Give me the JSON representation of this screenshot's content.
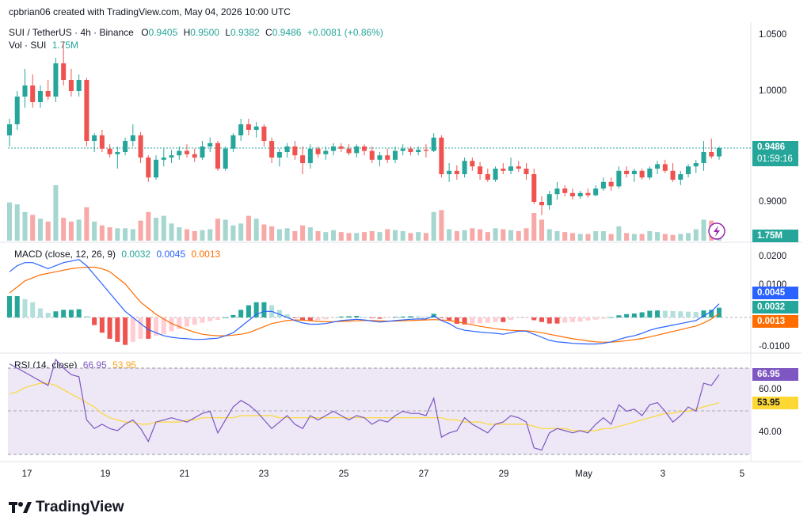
{
  "header": {
    "author_line": "cpbrian06 created with TradingView.com, May 04, 2026 10:00 UTC",
    "symbol": "SUI / TetherUS · 4h · Binance",
    "o_label": "O",
    "o": "0.9405",
    "h_label": "H",
    "h": "0.9500",
    "l_label": "L",
    "l": "0.9382",
    "c_label": "C",
    "c": "0.9486",
    "change": "+0.0081 (+0.86%)",
    "vol_label": "Vol · SUI",
    "vol_value": "1.75M"
  },
  "price_axis": {
    "labels": [
      "1.0500",
      "1.0000",
      "0.9000"
    ],
    "last_price": "0.9486",
    "countdown": "01:59:16",
    "vol_tag": "1.75M"
  },
  "macd": {
    "title": "MACD (close, 12, 26, 9)",
    "hist": "0.0032",
    "macd": "0.0045",
    "signal": "0.0013",
    "axis_labels": [
      "0.0200",
      "0.0100",
      "-0.0100"
    ],
    "tags": [
      "0.0045",
      "0.0032",
      "0.0013"
    ]
  },
  "rsi": {
    "title": "RSI (14, close)",
    "value": "66.95",
    "ma": "53.95",
    "axis_labels": [
      "60.00",
      "40.00"
    ],
    "tags": [
      "66.95",
      "53.95"
    ]
  },
  "x_axis": [
    "17",
    "19",
    "21",
    "23",
    "25",
    "27",
    "29",
    "May",
    "3",
    "5"
  ],
  "footer": {
    "brand": "TradingView",
    "logo_text": "TV"
  },
  "colors": {
    "up": "#26a69a",
    "down": "#ef5350",
    "macd_line": "#2962ff",
    "signal_line": "#ff6d00",
    "rsi_line": "#7e57c2",
    "rsi_ma": "#fdd835",
    "rsi_band": "#ede7f6"
  },
  "chart_data": {
    "type": "candlestick",
    "interval": "4h",
    "ylim": [
      0.88,
      1.07
    ],
    "candles": [
      [
        0.96,
        0.975,
        0.95,
        0.97
      ],
      [
        0.97,
        1.0,
        0.965,
        0.995
      ],
      [
        0.995,
        1.02,
        0.985,
        1.005
      ],
      [
        1.005,
        1.015,
        0.985,
        0.99
      ],
      [
        0.99,
        1.005,
        0.985,
        1.0
      ],
      [
        1.0,
        1.01,
        0.992,
        0.995
      ],
      [
        0.995,
        1.03,
        0.99,
        1.025
      ],
      [
        1.025,
        1.045,
        1.005,
        1.01
      ],
      [
        1.01,
        1.02,
        0.995,
        1.0
      ],
      [
        1.0,
        1.015,
        0.995,
        1.01
      ],
      [
        1.01,
        1.012,
        0.95,
        0.955
      ],
      [
        0.955,
        0.962,
        0.945,
        0.96
      ],
      [
        0.96,
        0.965,
        0.945,
        0.948
      ],
      [
        0.948,
        0.952,
        0.94,
        0.943
      ],
      [
        0.943,
        0.95,
        0.93,
        0.945
      ],
      [
        0.945,
        0.958,
        0.942,
        0.955
      ],
      [
        0.955,
        0.97,
        0.95,
        0.96
      ],
      [
        0.96,
        0.963,
        0.935,
        0.94
      ],
      [
        0.94,
        0.942,
        0.918,
        0.922
      ],
      [
        0.922,
        0.942,
        0.92,
        0.938
      ],
      [
        0.938,
        0.948,
        0.932,
        0.94
      ],
      [
        0.94,
        0.947,
        0.935,
        0.942
      ],
      [
        0.942,
        0.95,
        0.938,
        0.946
      ],
      [
        0.946,
        0.952,
        0.94,
        0.943
      ],
      [
        0.943,
        0.948,
        0.936,
        0.94
      ],
      [
        0.94,
        0.955,
        0.938,
        0.95
      ],
      [
        0.95,
        0.958,
        0.945,
        0.953
      ],
      [
        0.953,
        0.955,
        0.928,
        0.93
      ],
      [
        0.93,
        0.95,
        0.928,
        0.948
      ],
      [
        0.948,
        0.962,
        0.945,
        0.96
      ],
      [
        0.96,
        0.975,
        0.955,
        0.97
      ],
      [
        0.97,
        0.975,
        0.96,
        0.965
      ],
      [
        0.965,
        0.972,
        0.958,
        0.968
      ],
      [
        0.968,
        0.97,
        0.95,
        0.955
      ],
      [
        0.955,
        0.958,
        0.935,
        0.94
      ],
      [
        0.94,
        0.948,
        0.932,
        0.945
      ],
      [
        0.945,
        0.953,
        0.94,
        0.95
      ],
      [
        0.95,
        0.955,
        0.938,
        0.942
      ],
      [
        0.942,
        0.95,
        0.925,
        0.935
      ],
      [
        0.935,
        0.952,
        0.93,
        0.948
      ],
      [
        0.948,
        0.95,
        0.94,
        0.943
      ],
      [
        0.943,
        0.95,
        0.938,
        0.946
      ],
      [
        0.946,
        0.953,
        0.942,
        0.95
      ],
      [
        0.95,
        0.953,
        0.945,
        0.948
      ],
      [
        0.948,
        0.952,
        0.942,
        0.944
      ],
      [
        0.944,
        0.952,
        0.94,
        0.95
      ],
      [
        0.95,
        0.952,
        0.942,
        0.946
      ],
      [
        0.946,
        0.95,
        0.935,
        0.938
      ],
      [
        0.938,
        0.945,
        0.932,
        0.942
      ],
      [
        0.942,
        0.948,
        0.935,
        0.938
      ],
      [
        0.938,
        0.95,
        0.935,
        0.946
      ],
      [
        0.946,
        0.952,
        0.942,
        0.948
      ],
      [
        0.948,
        0.95,
        0.942,
        0.945
      ],
      [
        0.945,
        0.95,
        0.942,
        0.947
      ],
      [
        0.947,
        0.952,
        0.94,
        0.946
      ],
      [
        0.946,
        0.962,
        0.945,
        0.958
      ],
      [
        0.958,
        0.96,
        0.922,
        0.925
      ],
      [
        0.925,
        0.935,
        0.918,
        0.928
      ],
      [
        0.928,
        0.933,
        0.92,
        0.925
      ],
      [
        0.925,
        0.94,
        0.922,
        0.937
      ],
      [
        0.937,
        0.94,
        0.928,
        0.932
      ],
      [
        0.932,
        0.936,
        0.92,
        0.925
      ],
      [
        0.925,
        0.93,
        0.918,
        0.92
      ],
      [
        0.92,
        0.932,
        0.918,
        0.93
      ],
      [
        0.93,
        0.935,
        0.925,
        0.928
      ],
      [
        0.928,
        0.94,
        0.925,
        0.932
      ],
      [
        0.932,
        0.937,
        0.927,
        0.93
      ],
      [
        0.93,
        0.935,
        0.92,
        0.925
      ],
      [
        0.925,
        0.93,
        0.898,
        0.9
      ],
      [
        0.9,
        0.905,
        0.888,
        0.897
      ],
      [
        0.897,
        0.91,
        0.893,
        0.907
      ],
      [
        0.907,
        0.918,
        0.902,
        0.912
      ],
      [
        0.912,
        0.915,
        0.905,
        0.908
      ],
      [
        0.908,
        0.912,
        0.902,
        0.905
      ],
      [
        0.905,
        0.91,
        0.903,
        0.908
      ],
      [
        0.908,
        0.912,
        0.904,
        0.906
      ],
      [
        0.906,
        0.915,
        0.905,
        0.912
      ],
      [
        0.912,
        0.922,
        0.91,
        0.918
      ],
      [
        0.918,
        0.922,
        0.91,
        0.914
      ],
      [
        0.914,
        0.932,
        0.912,
        0.928
      ],
      [
        0.928,
        0.932,
        0.922,
        0.925
      ],
      [
        0.925,
        0.93,
        0.918,
        0.928
      ],
      [
        0.928,
        0.93,
        0.92,
        0.922
      ],
      [
        0.922,
        0.932,
        0.92,
        0.93
      ],
      [
        0.93,
        0.937,
        0.925,
        0.934
      ],
      [
        0.934,
        0.938,
        0.926,
        0.928
      ],
      [
        0.928,
        0.935,
        0.918,
        0.92
      ],
      [
        0.92,
        0.928,
        0.915,
        0.925
      ],
      [
        0.925,
        0.934,
        0.922,
        0.932
      ],
      [
        0.932,
        0.938,
        0.926,
        0.935
      ],
      [
        0.935,
        0.955,
        0.928,
        0.945
      ],
      [
        0.945,
        0.957,
        0.939,
        0.941
      ],
      [
        0.941,
        0.95,
        0.938,
        0.9486
      ]
    ],
    "volume": [
      4.0,
      3.8,
      3.0,
      2.7,
      2.3,
      2.0,
      5.8,
      2.4,
      2.0,
      2.2,
      3.5,
      2.0,
      1.6,
      1.4,
      1.3,
      1.3,
      1.2,
      2.1,
      3.0,
      2.4,
      2.6,
      1.8,
      1.4,
      1.2,
      1.0,
      1.1,
      1.2,
      2.3,
      2.2,
      1.6,
      1.8,
      2.6,
      2.3,
      1.7,
      1.5,
      1.2,
      1.3,
      1.0,
      1.6,
      1.4,
      1.0,
      0.9,
      1.1,
      0.9,
      0.8,
      0.8,
      0.9,
      1.0,
      0.9,
      1.2,
      1.1,
      1.0,
      0.8,
      0.9,
      0.8,
      3.0,
      3.2,
      1.2,
      1.0,
      1.1,
      1.3,
      1.2,
      0.9,
      1.3,
      1.2,
      1.1,
      1.0,
      1.3,
      2.9,
      2.2,
      1.2,
      1.0,
      0.9,
      0.8,
      0.7,
      0.7,
      1.0,
      1.0,
      0.7,
      1.5,
      0.8,
      0.7,
      0.7,
      1.0,
      0.9,
      0.7,
      0.6,
      0.7,
      0.8,
      1.2,
      2.2,
      2.1,
      1.75
    ],
    "macd_line": [
      0.015,
      0.017,
      0.018,
      0.018,
      0.017,
      0.016,
      0.017,
      0.018,
      0.0185,
      0.019,
      0.017,
      0.014,
      0.011,
      0.008,
      0.005,
      0.002,
      0.0,
      -0.002,
      -0.004,
      -0.005,
      -0.006,
      -0.0065,
      -0.0068,
      -0.007,
      -0.0072,
      -0.0072,
      -0.007,
      -0.0068,
      -0.006,
      -0.005,
      -0.003,
      -0.001,
      0.001,
      0.002,
      0.002,
      0.001,
      0.0,
      -0.001,
      -0.0018,
      -0.0022,
      -0.0022,
      -0.002,
      -0.0015,
      -0.001,
      -0.0008,
      -0.0006,
      -0.0008,
      -0.0012,
      -0.0015,
      -0.0013,
      -0.001,
      -0.0008,
      -0.0006,
      -0.0005,
      -0.0005,
      0.0005,
      -0.001,
      -0.002,
      -0.0035,
      -0.0042,
      -0.0045,
      -0.0048,
      -0.005,
      -0.0052,
      -0.0055,
      -0.005,
      -0.0045,
      -0.0045,
      -0.0055,
      -0.0065,
      -0.0075,
      -0.008,
      -0.0082,
      -0.0085,
      -0.0086,
      -0.0087,
      -0.0087,
      -0.0085,
      -0.008,
      -0.0072,
      -0.0065,
      -0.006,
      -0.0052,
      -0.0042,
      -0.0035,
      -0.003,
      -0.0025,
      -0.002,
      -0.0015,
      -0.001,
      0.0005,
      0.002,
      0.0045
    ],
    "signal_line": [
      0.008,
      0.01,
      0.012,
      0.013,
      0.014,
      0.0145,
      0.015,
      0.0155,
      0.016,
      0.0163,
      0.0165,
      0.0165,
      0.016,
      0.015,
      0.013,
      0.011,
      0.008,
      0.005,
      0.003,
      0.001,
      -0.0005,
      -0.002,
      -0.003,
      -0.004,
      -0.0048,
      -0.0055,
      -0.0058,
      -0.006,
      -0.006,
      -0.0058,
      -0.0055,
      -0.005,
      -0.004,
      -0.003,
      -0.002,
      -0.0015,
      -0.001,
      -0.0008,
      -0.0009,
      -0.0011,
      -0.0013,
      -0.0014,
      -0.0014,
      -0.0013,
      -0.0012,
      -0.0011,
      -0.001,
      -0.001,
      -0.0011,
      -0.0012,
      -0.0012,
      -0.0011,
      -0.001,
      -0.0009,
      -0.0008,
      -0.0007,
      -0.0008,
      -0.001,
      -0.0014,
      -0.0019,
      -0.0024,
      -0.0029,
      -0.0033,
      -0.0037,
      -0.004,
      -0.0042,
      -0.0043,
      -0.0044,
      -0.0046,
      -0.005,
      -0.0055,
      -0.006,
      -0.0065,
      -0.007,
      -0.0073,
      -0.0077,
      -0.008,
      -0.0081,
      -0.0081,
      -0.0079,
      -0.0076,
      -0.0073,
      -0.0069,
      -0.0064,
      -0.0058,
      -0.0052,
      -0.0046,
      -0.004,
      -0.0034,
      -0.0028,
      -0.0018,
      -0.0005,
      0.0013
    ],
    "rsi_line": [
      72,
      70,
      68,
      66,
      64,
      62,
      74,
      70,
      67,
      66,
      46,
      42,
      44,
      42,
      41,
      44,
      46,
      42,
      36,
      45,
      46,
      47,
      46,
      45,
      47,
      49,
      50,
      40,
      46,
      52,
      55,
      53,
      50,
      46,
      42,
      45,
      48,
      44,
      42,
      48,
      46,
      48,
      50,
      48,
      46,
      48,
      47,
      44,
      46,
      45,
      48,
      50,
      49,
      49,
      48,
      56,
      38,
      40,
      41,
      47,
      44,
      42,
      40,
      44,
      45,
      48,
      47,
      45,
      33,
      32,
      40,
      42,
      41,
      40,
      41,
      40,
      44,
      47,
      44,
      53,
      50,
      51,
      48,
      53,
      54,
      50,
      45,
      48,
      52,
      50,
      63,
      62,
      66.95
    ],
    "rsi_ma": [
      58,
      59,
      61,
      62,
      63,
      63,
      62,
      60,
      58,
      56,
      54,
      52,
      49,
      47,
      46,
      45,
      45,
      44,
      44,
      45,
      45,
      45,
      45,
      46,
      46,
      47,
      47,
      47,
      47,
      47,
      48,
      48,
      48,
      48,
      48,
      47,
      47,
      47,
      47,
      47,
      47,
      47,
      47,
      47,
      47,
      47,
      47,
      47,
      47,
      47,
      47,
      47,
      47,
      47,
      47,
      47,
      47,
      46,
      46,
      45,
      45,
      45,
      44,
      44,
      44,
      44,
      44,
      44,
      43,
      42,
      42,
      42,
      42,
      41,
      41,
      41,
      41,
      42,
      42,
      43,
      44,
      45,
      46,
      47,
      48,
      49,
      49,
      50,
      50,
      51,
      52,
      53,
      53.95
    ],
    "macd_ylim": [
      -0.012,
      0.022
    ],
    "rsi_ylim": [
      29,
      75
    ],
    "rsi_bands": [
      70,
      30
    ]
  }
}
